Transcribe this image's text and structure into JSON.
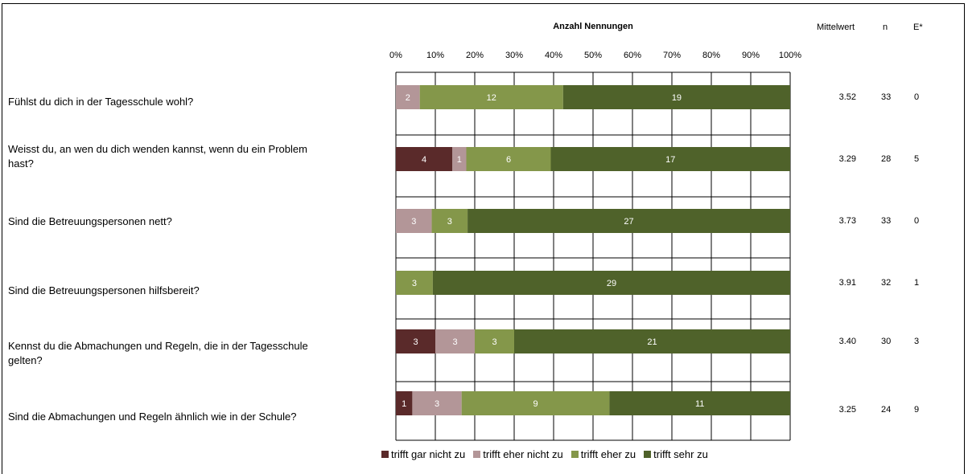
{
  "chart_data": {
    "type": "bar",
    "orientation": "horizontal",
    "stacked": "percent",
    "title": "Anzahl Nennungen",
    "xlim": [
      0,
      100
    ],
    "x_ticks": [
      "0%",
      "10%",
      "20%",
      "30%",
      "40%",
      "50%",
      "60%",
      "70%",
      "80%",
      "90%",
      "100%"
    ],
    "categories": [
      "Fühlst du dich in der Tagesschule wohl?",
      "Weisst du, an wen du dich wenden kannst, wenn du ein Problem hast?",
      "Sind die Betreuungspersonen nett?",
      "Sind die Betreuungspersonen hilfsbereit?",
      "Kennst du die Abmachungen und Regeln, die in der Tagesschule gelten?",
      "Sind die Abmachungen und Regeln ähnlich wie in der Schule?"
    ],
    "series": [
      {
        "name": "trifft gar nicht zu",
        "color": "#5a2a2a",
        "values": [
          0,
          4,
          0,
          0,
          3,
          1
        ]
      },
      {
        "name": "trifft eher nicht zu",
        "color": "#b39698",
        "values": [
          2,
          1,
          3,
          0,
          3,
          3
        ]
      },
      {
        "name": "trifft eher zu",
        "color": "#84974a",
        "values": [
          12,
          6,
          3,
          3,
          3,
          9
        ]
      },
      {
        "name": "trifft sehr zu",
        "color": "#4f622a",
        "values": [
          19,
          17,
          27,
          29,
          21,
          11
        ]
      }
    ],
    "legend_position": "bottom",
    "grid": true
  },
  "stats": {
    "headers": {
      "mean": "Mittelwert",
      "n": "n",
      "e": "E*"
    },
    "rows": [
      {
        "mean": "3.52",
        "n": "33",
        "e": "0"
      },
      {
        "mean": "3.29",
        "n": "28",
        "e": "5"
      },
      {
        "mean": "3.73",
        "n": "33",
        "e": "0"
      },
      {
        "mean": "3.91",
        "n": "32",
        "e": "1"
      },
      {
        "mean": "3.40",
        "n": "30",
        "e": "3"
      },
      {
        "mean": "3.25",
        "n": "24",
        "e": "9"
      }
    ]
  }
}
